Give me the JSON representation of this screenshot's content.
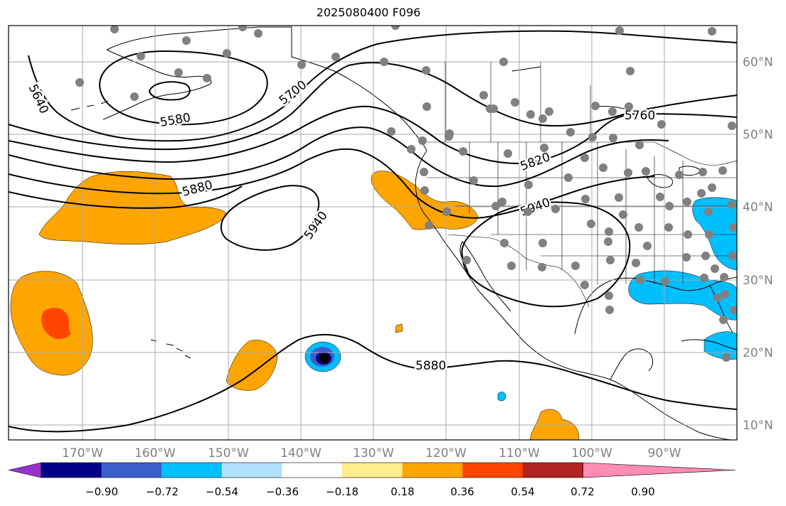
{
  "title": "2025080400 F096",
  "axes": {
    "lon_ticks": [
      "170°W",
      "160°W",
      "150°W",
      "140°W",
      "130°W",
      "120°W",
      "110°W",
      "100°W",
      "90°W"
    ],
    "lat_ticks": [
      "60°N",
      "50°N",
      "40°N",
      "30°N",
      "20°N",
      "10°N"
    ],
    "lon_range": [
      -180,
      -80
    ],
    "lat_range": [
      8,
      65
    ]
  },
  "contour_labels": [
    "5640",
    "5580",
    "5700",
    "5760",
    "5820",
    "5880",
    "5940",
    "5940",
    "5880"
  ],
  "colorbar": {
    "ticks": [
      "−0.90",
      "−0.72",
      "−0.54",
      "−0.36",
      "−0.18",
      "0.18",
      "0.36",
      "0.54",
      "0.72",
      "0.90"
    ],
    "colors": [
      "#9932cc",
      "#00008b",
      "#3a5fcd",
      "#00bfff",
      "#b0e2ff",
      "#ffffff",
      "#ffec8b",
      "#ffa500",
      "#ff4500",
      "#b22222",
      "#ff8cb4"
    ]
  },
  "colors": {
    "positive_anomaly": "#ffa500",
    "strong_positive": "#ff4500",
    "negative_anomaly": "#00bfff",
    "cyclone_dark": "#000000",
    "cyclone_mid": "#3a5fcd",
    "station": "#808080"
  }
}
